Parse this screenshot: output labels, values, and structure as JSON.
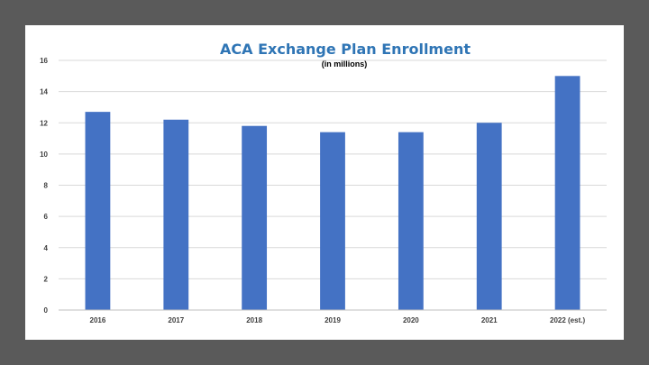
{
  "chart_data": {
    "type": "bar",
    "title": "ACA Exchange Plan Enrollment",
    "subtitle": "(in millions)",
    "xlabel": "",
    "ylabel": "",
    "categories": [
      "2016",
      "2017",
      "2018",
      "2019",
      "2020",
      "2021",
      "2022 (est.)"
    ],
    "values": [
      12.7,
      12.2,
      11.8,
      11.4,
      11.4,
      12.0,
      15.0
    ],
    "ylim": [
      0,
      16
    ],
    "yticks": [
      "0",
      "2",
      "4",
      "6",
      "8",
      "10",
      "12",
      "14",
      "16"
    ],
    "grid": true,
    "legend": "none",
    "colors": {
      "bar": "#4472c4",
      "title": "#2f75b5",
      "background": "#ffffff",
      "frame": "#5a5a5a"
    }
  }
}
